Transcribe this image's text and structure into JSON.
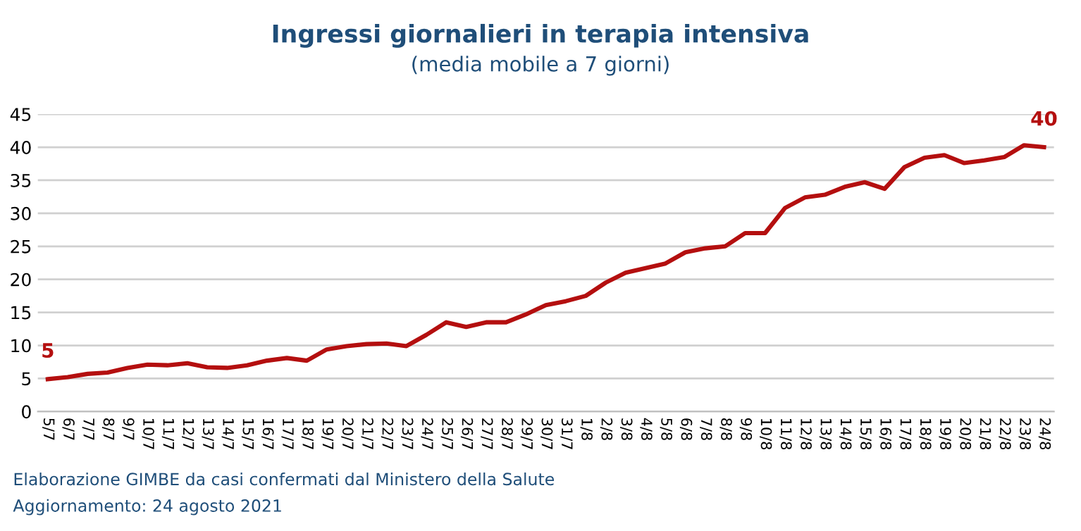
{
  "chart_data": {
    "type": "line",
    "title": "Ingressi giornalieri in terapia intensiva",
    "subtitle": "(media mobile a 7 giorni)",
    "categories": [
      "5/7",
      "6/7",
      "7/7",
      "8/7",
      "9/7",
      "10/7",
      "11/7",
      "12/7",
      "13/7",
      "14/7",
      "15/7",
      "16/7",
      "17/7",
      "18/7",
      "19/7",
      "20/7",
      "21/7",
      "22/7",
      "23/7",
      "24/7",
      "25/7",
      "26/7",
      "27/7",
      "28/7",
      "29/7",
      "30/7",
      "31/7",
      "1/8",
      "2/8",
      "3/8",
      "4/8",
      "5/8",
      "6/8",
      "7/8",
      "8/8",
      "9/8",
      "10/8",
      "11/8",
      "12/8",
      "13/8",
      "14/8",
      "15/8",
      "16/8",
      "17/8",
      "18/8",
      "19/8",
      "20/8",
      "21/8",
      "22/8",
      "23/8",
      "24/8"
    ],
    "series": [
      {
        "color": "#b40f0f",
        "values": [
          4.9,
          5.2,
          5.7,
          5.9,
          6.6,
          7.1,
          7.0,
          7.3,
          6.7,
          6.6,
          7.0,
          7.7,
          8.1,
          7.7,
          9.4,
          9.9,
          10.2,
          10.3,
          9.9,
          11.6,
          13.5,
          12.8,
          13.5,
          13.5,
          14.7,
          16.1,
          16.7,
          17.5,
          19.5,
          21.0,
          21.7,
          22.4,
          24.1,
          24.7,
          25.0,
          27.0,
          27.0,
          30.8,
          32.4,
          32.8,
          34.0,
          34.7,
          33.7,
          37.0,
          38.4,
          38.8,
          37.6,
          38.0,
          38.5,
          40.3,
          40.0
        ],
        "value_labels": [
          "5",
          null,
          null,
          null,
          null,
          null,
          null,
          null,
          null,
          null,
          null,
          null,
          null,
          null,
          null,
          null,
          null,
          null,
          null,
          null,
          null,
          null,
          null,
          null,
          null,
          null,
          null,
          null,
          null,
          null,
          null,
          null,
          null,
          null,
          null,
          null,
          null,
          null,
          null,
          null,
          null,
          null,
          null,
          null,
          null,
          null,
          null,
          null,
          null,
          null,
          "40"
        ]
      }
    ],
    "ylim": [
      0,
      45
    ],
    "yticks": [
      0,
      5,
      10,
      15,
      20,
      25,
      30,
      35,
      40,
      45
    ],
    "grid": "y",
    "legend": false,
    "marker": "none",
    "line_style": "solid",
    "annotations": [
      "Elaborazione GIMBE da casi confermati dal Ministero della Salute",
      "Aggiornamento: 24 agosto 2021"
    ]
  }
}
